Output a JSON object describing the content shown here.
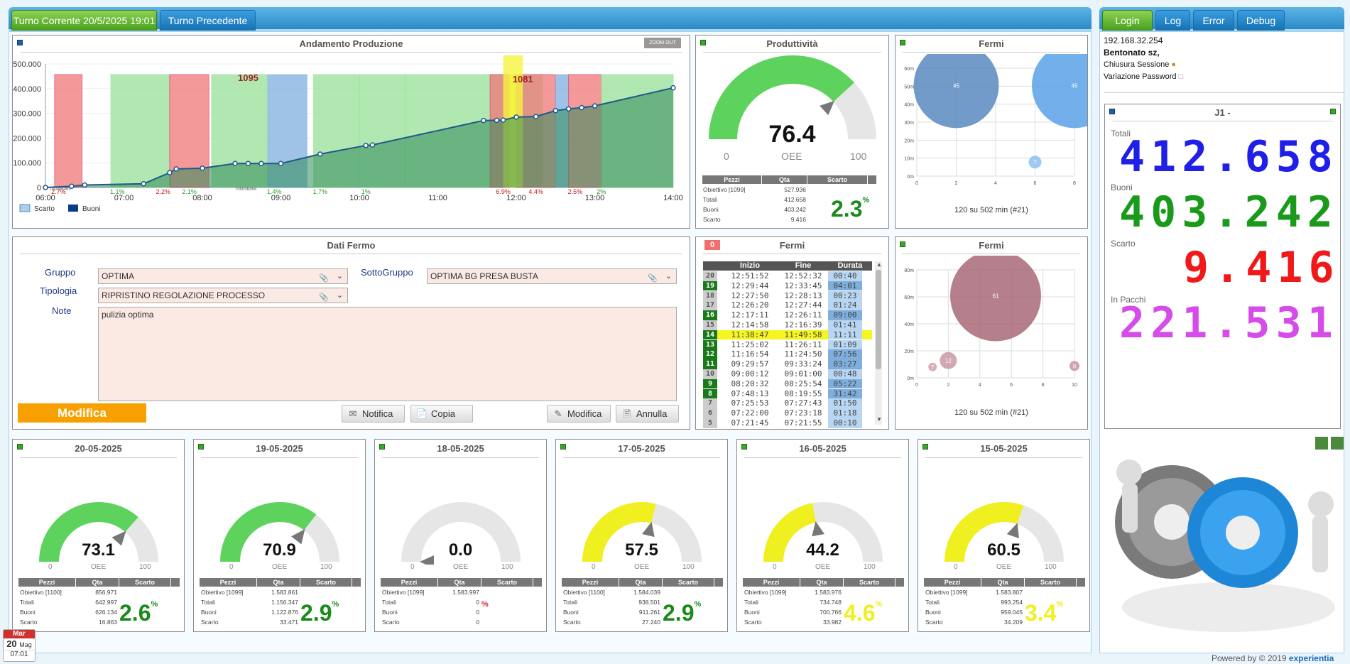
{
  "tabs": {
    "current": "Turno Corrente 20/5/2025 19:01 T2",
    "previous": "Turno Precedente"
  },
  "right_tabs": [
    "Login",
    "Log",
    "Error",
    "Debug"
  ],
  "production": {
    "title": "Andamento Produzione",
    "zoom_label": "ZOOM OUT",
    "yticks": [
      "500.000",
      "400.000",
      "300.000",
      "200.000",
      "100.000",
      "0"
    ],
    "xticks": [
      "06:00",
      "07:00",
      "08:00",
      "09:00",
      "10:00",
      "11:00",
      "12:00",
      "13:00",
      "14:00"
    ],
    "annotations": [
      "1095",
      "1081"
    ],
    "scrap_pcts": [
      "2.7%",
      "1.1%",
      "2.2%",
      "2.1%",
      "1.4%",
      "1.7%",
      "1%",
      "6.9%",
      "4.4%",
      "2.5%",
      "2%"
    ],
    "markers": [
      "700006363",
      "700006364"
    ],
    "legend": [
      "Scarto",
      "Buoni"
    ]
  },
  "chart_data": {
    "type": "line",
    "title": "Andamento Produzione",
    "x": [
      "06:00",
      "06:20",
      "06:30",
      "07:15",
      "07:35",
      "07:40",
      "08:00",
      "08:25",
      "08:35",
      "08:45",
      "09:00",
      "09:30",
      "10:05",
      "10:10",
      "11:35",
      "11:45",
      "11:50",
      "12:00",
      "12:15",
      "12:30",
      "12:40",
      "12:50",
      "13:00",
      "14:00"
    ],
    "series": [
      {
        "name": "Buoni",
        "values": [
          0,
          5000,
          10000,
          15000,
          60000,
          75000,
          78000,
          97000,
          97000,
          97000,
          97000,
          135000,
          170000,
          172000,
          271000,
          272000,
          273000,
          285000,
          287000,
          311000,
          318000,
          323000,
          330000,
          403242
        ]
      }
    ],
    "ylim": [
      0,
      500000
    ],
    "legend": [
      "Scarto",
      "Buoni"
    ]
  },
  "productivity": {
    "title": "Produttività",
    "oee": "76.4",
    "min": "0",
    "label": "OEE",
    "max": "100",
    "pct": "2.3",
    "pct_unit": "%",
    "fill": 0.764,
    "color": "#5dd35d",
    "headers": [
      "Pezzi",
      "Qta",
      "Scarto"
    ],
    "rows": [
      [
        "Obiettivo [1099]",
        "527.936"
      ],
      [
        "Totali",
        "412.658"
      ],
      [
        "Buoni",
        "403.242"
      ],
      [
        "Scarto",
        "9.416"
      ]
    ]
  },
  "fermi1": {
    "title": "Fermi",
    "footer": "120 su 502 min (#21)",
    "yticks": [
      "60m",
      "50m",
      "40m",
      "30m",
      "20m",
      "10m",
      "0m"
    ],
    "xticks": [
      "0",
      "2",
      "4",
      "6",
      "8"
    ],
    "bubbles": [
      "45",
      "45",
      "7",
      "2"
    ]
  },
  "fermi2": {
    "title": "Fermi",
    "footer": "120 su 502 min (#21)",
    "yticks": [
      "80m",
      "60m",
      "40m",
      "20m",
      "0m"
    ],
    "xticks": [
      "0",
      "2",
      "4",
      "6",
      "8",
      "10"
    ],
    "bubbles": [
      "61",
      "12",
      "7",
      "8"
    ]
  },
  "dati_fermo": {
    "title": "Dati Fermo",
    "gruppo_label": "Gruppo",
    "gruppo": "OPTIMA",
    "sottogruppo_label": "SottoGruppo",
    "sottogruppo": "OPTIMA BG PRESA BUSTA",
    "tipologia_label": "Tipologia",
    "tipologia": "RIPRISTINO REGOLAZIONE PROCESSO",
    "note_label": "Note",
    "note": "pulizia optima",
    "modifica_big": "Modifica",
    "buttons": {
      "notifica": "Notifica",
      "copia": "Copia",
      "modifica": "Modifica",
      "annulla": "Annulla"
    }
  },
  "fermi_table": {
    "title": "Fermi",
    "badge": "0",
    "headers": [
      "Inizio",
      "Fine",
      "Durata"
    ],
    "rows": [
      [
        "20",
        "12:51:52",
        "12:52:32",
        "00:40"
      ],
      [
        "19",
        "12:29:44",
        "12:33:45",
        "04:01"
      ],
      [
        "18",
        "12:27:50",
        "12:28:13",
        "00:23"
      ],
      [
        "17",
        "12:26:20",
        "12:27:44",
        "01:24"
      ],
      [
        "16",
        "12:17:11",
        "12:26:11",
        "09:00"
      ],
      [
        "15",
        "12:14:58",
        "12:16:39",
        "01:41"
      ],
      [
        "14",
        "11:38:47",
        "11:49:58",
        "11:11"
      ],
      [
        "13",
        "11:25:02",
        "11:26:11",
        "01:09"
      ],
      [
        "12",
        "11:16:54",
        "11:24:50",
        "07:56"
      ],
      [
        "11",
        "09:29:57",
        "09:33:24",
        "03:27"
      ],
      [
        "10",
        "09:00:12",
        "09:01:00",
        "00:48"
      ],
      [
        "9",
        "08:20:32",
        "08:25:54",
        "05:22"
      ],
      [
        "8",
        "07:48:13",
        "08:19:55",
        "31:42"
      ],
      [
        "7",
        "07:25:53",
        "07:27:43",
        "01:50"
      ],
      [
        "6",
        "07:22:00",
        "07:23:18",
        "01:18"
      ],
      [
        "5",
        "07:21:45",
        "07:21:55",
        "00:10"
      ]
    ]
  },
  "daily": [
    {
      "date": "20-05-2025",
      "oee": "73.1",
      "fill": 0.731,
      "color": "#5dd35d",
      "obj": "Obiettivo [1100]",
      "obj_v": "856.971",
      "tot": "642.997",
      "buo": "626.134",
      "sca": "16.863",
      "pct": "2.6",
      "pctcolor": "#1a8a1a"
    },
    {
      "date": "19-05-2025",
      "oee": "70.9",
      "fill": 0.709,
      "color": "#5dd35d",
      "obj": "Obiettivo [1099]",
      "obj_v": "1.583.861",
      "tot": "1.156.347",
      "buo": "1.122.876",
      "sca": "33.471",
      "pct": "2.9",
      "pctcolor": "#1a8a1a"
    },
    {
      "date": "18-05-2025",
      "oee": "0.0",
      "fill": 0,
      "color": "#5dd35d",
      "obj": "Obiettivo [1099]",
      "obj_v": "1.583.997",
      "tot": "0",
      "buo": "0",
      "sca": "0",
      "pct": "",
      "pctcolor": "#e02020"
    },
    {
      "date": "17-05-2025",
      "oee": "57.5",
      "fill": 0.575,
      "color": "#f0f020",
      "obj": "Obiettivo [1100]",
      "obj_v": "1.584.039",
      "tot": "938.501",
      "buo": "911.261",
      "sca": "27.240",
      "pct": "2.9",
      "pctcolor": "#1a8a1a"
    },
    {
      "date": "16-05-2025",
      "oee": "44.2",
      "fill": 0.442,
      "color": "#f0f020",
      "obj": "Obiettivo [1099]",
      "obj_v": "1.583.976",
      "tot": "734.748",
      "buo": "700.766",
      "sca": "33.982",
      "pct": "4.6",
      "pctcolor": "#f0f020"
    },
    {
      "date": "15-05-2025",
      "oee": "60.5",
      "fill": 0.605,
      "color": "#f0f020",
      "obj": "Obiettivo [1099]",
      "obj_v": "1.583.807",
      "tot": "993.254",
      "buo": "959.045",
      "sca": "34.209",
      "pct": "3.4",
      "pctcolor": "#f0f020"
    }
  ],
  "gauge_common": {
    "min": "0",
    "label": "OEE",
    "max": "100",
    "h1": "Pezzi",
    "h2": "Qta",
    "h3": "Scarto",
    "l_tot": "Totali",
    "l_buo": "Buoni",
    "l_sca": "Scarto",
    "pct_unit": "%"
  },
  "session": {
    "ip": "192.168.32.254",
    "user": "Bentonato sz,",
    "close": "Chiusura Sessione",
    "change_pwd": "Variazione Password"
  },
  "totals": {
    "title": "J1 -",
    "totali_label": "Totali",
    "totali": "412.658",
    "buoni_label": "Buoni",
    "buoni": "403.242",
    "scarto_label": "Scarto",
    "scarto": "9.416",
    "pacchi_label": "In Pacchi",
    "pacchi": "221.531"
  },
  "calendar": {
    "dow": "Mar",
    "day": "20",
    "month": "Mag",
    "time": "07:01"
  },
  "footer": "Powered by © 2019",
  "brand": "experientia"
}
